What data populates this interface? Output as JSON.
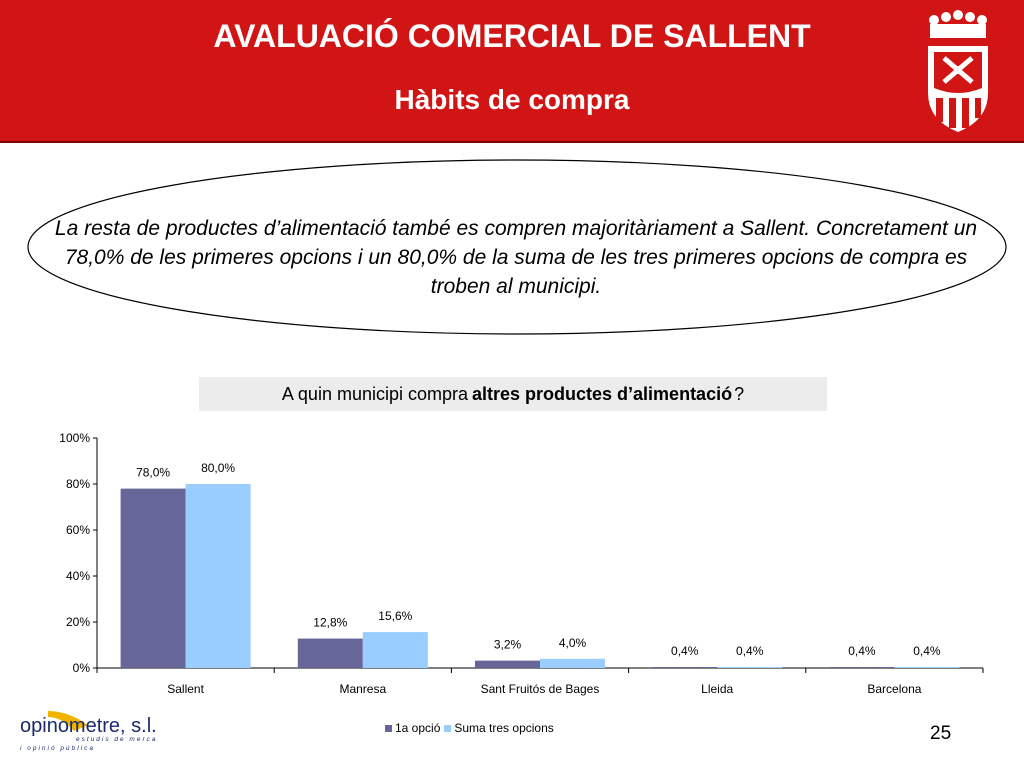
{
  "header": {
    "title": "AVALUACIÓ COMERCIAL DE SALLENT",
    "subtitle": "Hàbits de compra"
  },
  "summary": "La resta de productes d’alimentació també es compren majoritàriament a Sallent. Concretament un 78,0% de les primeres opcions i un 80,0% de la suma de les tres primeres opcions de compra es troben al municipi.",
  "question": {
    "prefix": "A quin municipi compra",
    "bold": "altres productes d’alimentació",
    "suffix": "?"
  },
  "chart_data": {
    "type": "bar",
    "categories": [
      "Sallent",
      "Manresa",
      "Sant Fruitós de Bages",
      "Lleida",
      "Barcelona"
    ],
    "series": [
      {
        "name": "1a opció",
        "values": [
          78.0,
          12.8,
          3.2,
          0.4,
          0.4
        ],
        "labels": [
          "78,0%",
          "12,8%",
          "3,2%",
          "0,4%",
          "0,4%"
        ],
        "color": "#666699"
      },
      {
        "name": "Suma tres opcions",
        "values": [
          80.0,
          15.6,
          4.0,
          0.4,
          0.4
        ],
        "labels": [
          "80,0%",
          "15,6%",
          "4,0%",
          "0,4%",
          "0,4%"
        ],
        "color": "#99ccff"
      }
    ],
    "ylim": [
      0,
      100
    ],
    "yticks": [
      "0%",
      "20%",
      "40%",
      "60%",
      "80%",
      "100%"
    ],
    "grid": false,
    "legend": "bottom"
  },
  "footer": {
    "logo_name": "opinometre, s.l.",
    "logo_tag1": "estudis de mercat",
    "logo_tag2": "i opinió pública",
    "page": "25"
  },
  "colors": {
    "header_bg": "#d11414",
    "question_bg": "#ececec"
  }
}
